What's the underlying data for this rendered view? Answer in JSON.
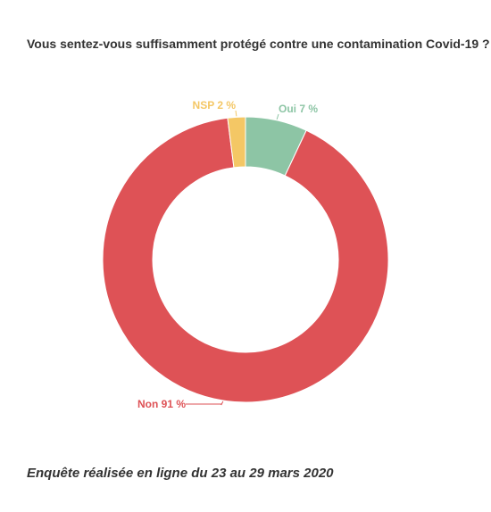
{
  "title": "Vous sentez-vous suffisamment protégé contre une contamination Covid-19 ?",
  "footer": "Enquête réalisée en ligne du 23 au 29 mars 2020",
  "chart_data": {
    "type": "pie",
    "variant": "donut",
    "slices": [
      {
        "label": "Oui 7 %",
        "category": "Oui",
        "value": 7,
        "color": "#8dc5a5"
      },
      {
        "label": "Non 91 %",
        "category": "Non",
        "value": 91,
        "color": "#de5256"
      },
      {
        "label": "NSP 2 %",
        "category": "NSP",
        "value": 2,
        "color": "#f4c765"
      }
    ]
  }
}
